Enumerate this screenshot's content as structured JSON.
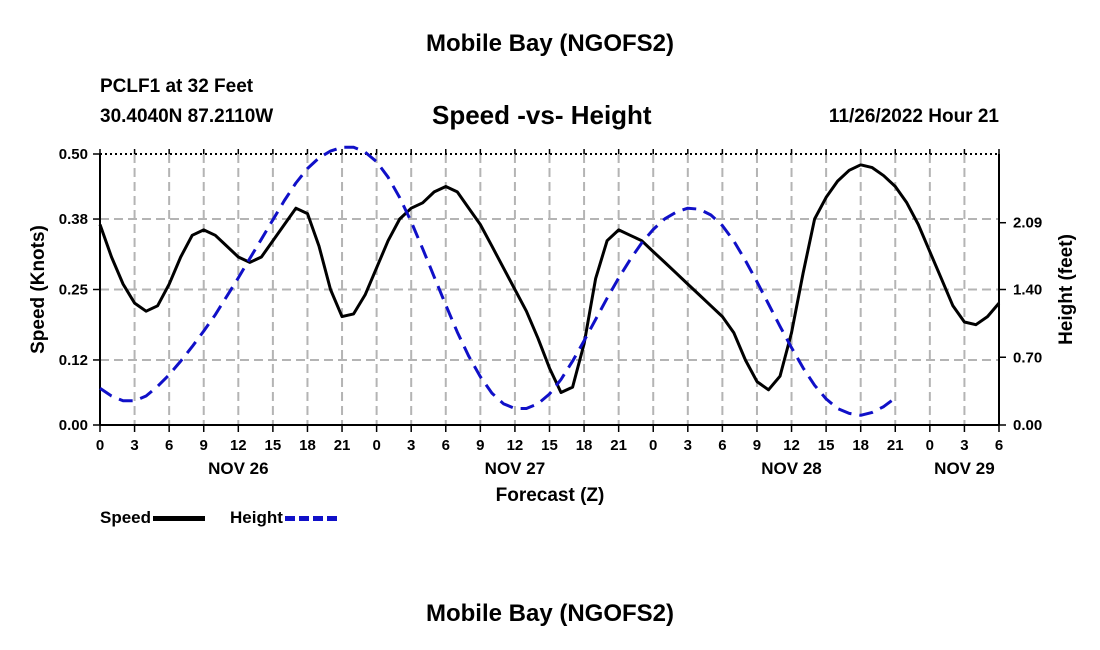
{
  "titles": {
    "top": "Mobile Bay (NGOFS2)",
    "bottom": "Mobile Bay (NGOFS2)",
    "station": "PCLF1 at 32 Feet",
    "latlon": "30.4040N  87.2110W",
    "subtitle": "Speed -vs- Height",
    "run": "11/26/2022 Hour 21"
  },
  "legend": {
    "speed": "Speed",
    "height": "Height"
  },
  "colors": {
    "speed": "#000000",
    "height": "#1010c8",
    "grid": "#b4b4b4"
  },
  "chart_data": {
    "type": "line",
    "title": "Speed -vs- Height",
    "xlabel": "Forecast (Z)",
    "ylabel": "Speed (Knots)",
    "y2label": "Height (feet)",
    "xlim": [
      0,
      78
    ],
    "ylim": [
      0,
      0.5
    ],
    "y2lim": [
      0,
      2.8
    ],
    "x_tick_labels": [
      "0",
      "3",
      "6",
      "9",
      "12",
      "15",
      "18",
      "21",
      "0",
      "3",
      "6",
      "9",
      "12",
      "15",
      "18",
      "21",
      "0",
      "3",
      "6",
      "9",
      "12",
      "15",
      "18",
      "21",
      "0",
      "3",
      "6"
    ],
    "date_labels": [
      {
        "label": "NOV 26",
        "x": 12
      },
      {
        "label": "NOV 27",
        "x": 36
      },
      {
        "label": "NOV 28",
        "x": 60
      },
      {
        "label": "NOV 29",
        "x": 75
      }
    ],
    "y_ticks": [
      "0.00",
      "0.12",
      "0.25",
      "0.38",
      "0.50"
    ],
    "y2_ticks": [
      "0.00",
      "0.70",
      "1.40",
      "2.09"
    ],
    "grid": true,
    "legend_position": "bottom-left",
    "series": [
      {
        "name": "Speed",
        "axis": "left",
        "style": "solid",
        "points": [
          [
            0,
            0.37
          ],
          [
            1,
            0.31
          ],
          [
            2,
            0.26
          ],
          [
            3,
            0.225
          ],
          [
            4,
            0.21
          ],
          [
            5,
            0.22
          ],
          [
            6,
            0.26
          ],
          [
            7,
            0.31
          ],
          [
            8,
            0.35
          ],
          [
            9,
            0.36
          ],
          [
            10,
            0.35
          ],
          [
            11,
            0.33
          ],
          [
            12,
            0.31
          ],
          [
            13,
            0.3
          ],
          [
            14,
            0.31
          ],
          [
            15,
            0.34
          ],
          [
            16,
            0.37
          ],
          [
            17,
            0.4
          ],
          [
            18,
            0.39
          ],
          [
            19,
            0.33
          ],
          [
            20,
            0.25
          ],
          [
            21,
            0.2
          ],
          [
            22,
            0.205
          ],
          [
            23,
            0.24
          ],
          [
            24,
            0.29
          ],
          [
            25,
            0.34
          ],
          [
            26,
            0.38
          ],
          [
            27,
            0.4
          ],
          [
            28,
            0.41
          ],
          [
            29,
            0.43
          ],
          [
            30,
            0.44
          ],
          [
            31,
            0.43
          ],
          [
            32,
            0.4
          ],
          [
            33,
            0.37
          ],
          [
            34,
            0.33
          ],
          [
            35,
            0.29
          ],
          [
            36,
            0.25
          ],
          [
            37,
            0.21
          ],
          [
            38,
            0.16
          ],
          [
            39,
            0.105
          ],
          [
            40,
            0.06
          ],
          [
            41,
            0.07
          ],
          [
            42,
            0.15
          ],
          [
            43,
            0.27
          ],
          [
            44,
            0.34
          ],
          [
            45,
            0.36
          ],
          [
            46,
            0.35
          ],
          [
            47,
            0.34
          ],
          [
            48,
            0.32
          ],
          [
            49,
            0.3
          ],
          [
            50,
            0.28
          ],
          [
            51,
            0.26
          ],
          [
            52,
            0.24
          ],
          [
            53,
            0.22
          ],
          [
            54,
            0.2
          ],
          [
            55,
            0.17
          ],
          [
            56,
            0.12
          ],
          [
            57,
            0.08
          ],
          [
            58,
            0.065
          ],
          [
            59,
            0.09
          ],
          [
            60,
            0.17
          ],
          [
            61,
            0.28
          ],
          [
            62,
            0.38
          ],
          [
            63,
            0.42
          ],
          [
            64,
            0.45
          ],
          [
            65,
            0.47
          ],
          [
            66,
            0.48
          ],
          [
            67,
            0.475
          ],
          [
            68,
            0.46
          ],
          [
            69,
            0.44
          ],
          [
            70,
            0.41
          ],
          [
            71,
            0.37
          ],
          [
            72,
            0.32
          ],
          [
            73,
            0.27
          ],
          [
            74,
            0.22
          ],
          [
            75,
            0.19
          ],
          [
            76,
            0.185
          ],
          [
            77,
            0.2
          ],
          [
            78,
            0.225
          ]
        ]
      },
      {
        "name": "Height",
        "axis": "right",
        "style": "dashed",
        "points": [
          [
            0,
            0.38
          ],
          [
            1,
            0.3
          ],
          [
            2,
            0.25
          ],
          [
            3,
            0.25
          ],
          [
            4,
            0.3
          ],
          [
            5,
            0.4
          ],
          [
            6,
            0.52
          ],
          [
            7,
            0.66
          ],
          [
            8,
            0.81
          ],
          [
            9,
            0.97
          ],
          [
            10,
            1.14
          ],
          [
            11,
            1.33
          ],
          [
            12,
            1.52
          ],
          [
            13,
            1.72
          ],
          [
            14,
            1.92
          ],
          [
            15,
            2.12
          ],
          [
            16,
            2.32
          ],
          [
            17,
            2.5
          ],
          [
            18,
            2.65
          ],
          [
            19,
            2.76
          ],
          [
            20,
            2.83
          ],
          [
            21,
            2.87
          ],
          [
            22,
            2.87
          ],
          [
            23,
            2.82
          ],
          [
            24,
            2.72
          ],
          [
            25,
            2.56
          ],
          [
            26,
            2.35
          ],
          [
            27,
            2.1
          ],
          [
            28,
            1.82
          ],
          [
            29,
            1.53
          ],
          [
            30,
            1.24
          ],
          [
            31,
            0.96
          ],
          [
            32,
            0.71
          ],
          [
            33,
            0.5
          ],
          [
            34,
            0.33
          ],
          [
            35,
            0.22
          ],
          [
            36,
            0.17
          ],
          [
            37,
            0.17
          ],
          [
            38,
            0.22
          ],
          [
            39,
            0.32
          ],
          [
            40,
            0.47
          ],
          [
            41,
            0.66
          ],
          [
            42,
            0.87
          ],
          [
            43,
            1.09
          ],
          [
            44,
            1.31
          ],
          [
            45,
            1.52
          ],
          [
            46,
            1.71
          ],
          [
            47,
            1.88
          ],
          [
            48,
            2.02
          ],
          [
            49,
            2.13
          ],
          [
            50,
            2.2
          ],
          [
            51,
            2.24
          ],
          [
            52,
            2.23
          ],
          [
            53,
            2.17
          ],
          [
            54,
            2.06
          ],
          [
            55,
            1.9
          ],
          [
            56,
            1.7
          ],
          [
            57,
            1.48
          ],
          [
            58,
            1.25
          ],
          [
            59,
            1.02
          ],
          [
            60,
            0.8
          ],
          [
            61,
            0.59
          ],
          [
            62,
            0.41
          ],
          [
            63,
            0.27
          ],
          [
            64,
            0.17
          ],
          [
            65,
            0.12
          ],
          [
            66,
            0.1
          ],
          [
            67,
            0.13
          ],
          [
            68,
            0.19
          ],
          [
            69,
            0.28
          ]
        ]
      }
    ]
  }
}
